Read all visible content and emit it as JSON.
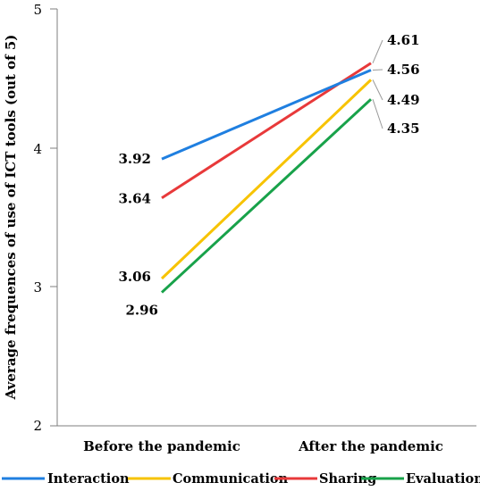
{
  "chart_data": {
    "type": "line",
    "categories": [
      "Before the pandemic",
      "After the pandemic"
    ],
    "ylabel": "Average frequences of use of ICT tools (out of 5)",
    "xlabel": "",
    "ylim": [
      2,
      5
    ],
    "yticks": [
      "2",
      "3",
      "4",
      "5"
    ],
    "grid": false,
    "legend": "bottom",
    "series": [
      {
        "name": "Interaction",
        "color": "#1f7fe0",
        "values": [
          3.92,
          4.56
        ],
        "labels": [
          "3.92",
          "4.56"
        ]
      },
      {
        "name": "Communication",
        "color": "#f7c300",
        "values": [
          3.06,
          4.49
        ],
        "labels": [
          "3.06",
          "4.49"
        ]
      },
      {
        "name": "Sharing",
        "color": "#e8393a",
        "values": [
          3.64,
          4.61
        ],
        "labels": [
          "3.64",
          "4.61"
        ]
      },
      {
        "name": "Evaluation",
        "color": "#18a24a",
        "values": [
          2.96,
          4.35
        ],
        "labels": [
          "2.96",
          "4.35"
        ]
      }
    ]
  }
}
